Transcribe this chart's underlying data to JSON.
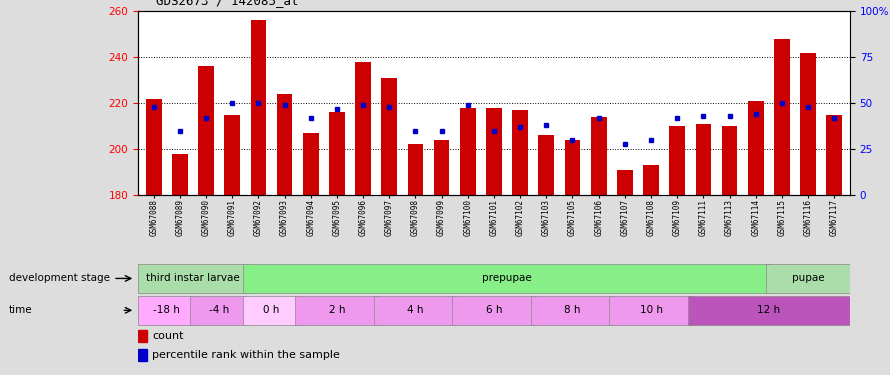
{
  "title": "GDS2673 / 142085_at",
  "samples": [
    "GSM67088",
    "GSM67089",
    "GSM67090",
    "GSM67091",
    "GSM67092",
    "GSM67093",
    "GSM67094",
    "GSM67095",
    "GSM67096",
    "GSM67097",
    "GSM67098",
    "GSM67099",
    "GSM67100",
    "GSM67101",
    "GSM67102",
    "GSM67103",
    "GSM67105",
    "GSM67106",
    "GSM67107",
    "GSM67108",
    "GSM67109",
    "GSM67111",
    "GSM67113",
    "GSM67114",
    "GSM67115",
    "GSM67116",
    "GSM67117"
  ],
  "counts": [
    222,
    198,
    236,
    215,
    256,
    224,
    207,
    216,
    238,
    231,
    202,
    204,
    218,
    218,
    217,
    206,
    204,
    214,
    191,
    193,
    210,
    211,
    210,
    221,
    248,
    242,
    215
  ],
  "percentiles": [
    48,
    35,
    42,
    50,
    50,
    49,
    42,
    47,
    49,
    48,
    35,
    35,
    49,
    35,
    37,
    38,
    30,
    42,
    28,
    30,
    42,
    43,
    43,
    44,
    50,
    48,
    42
  ],
  "ymin": 180,
  "ymax": 260,
  "yticks": [
    180,
    200,
    220,
    240,
    260
  ],
  "right_yticks": [
    0,
    25,
    50,
    75,
    100
  ],
  "bar_color": "#cc0000",
  "dot_color": "#0000cc",
  "plot_bg_color": "#ffffff",
  "fig_bg_color": "#dddddd",
  "stage_groups": [
    {
      "label": "third instar larvae",
      "start": 0,
      "end": 4,
      "color": "#aaddaa"
    },
    {
      "label": "prepupae",
      "start": 4,
      "end": 24,
      "color": "#88ee88"
    },
    {
      "label": "pupae",
      "start": 24,
      "end": 27,
      "color": "#aaddaa"
    }
  ],
  "time_groups": [
    {
      "label": "-18 h",
      "start": 0,
      "end": 2,
      "color": "#ffaaff"
    },
    {
      "label": "-4 h",
      "start": 2,
      "end": 4,
      "color": "#ee99ee"
    },
    {
      "label": "0 h",
      "start": 4,
      "end": 6,
      "color": "#ffccff"
    },
    {
      "label": "2 h",
      "start": 6,
      "end": 9,
      "color": "#ee99ee"
    },
    {
      "label": "4 h",
      "start": 9,
      "end": 12,
      "color": "#ee99ee"
    },
    {
      "label": "6 h",
      "start": 12,
      "end": 15,
      "color": "#ee99ee"
    },
    {
      "label": "8 h",
      "start": 15,
      "end": 18,
      "color": "#ee99ee"
    },
    {
      "label": "10 h",
      "start": 18,
      "end": 21,
      "color": "#ee99ee"
    },
    {
      "label": "12 h",
      "start": 21,
      "end": 27,
      "color": "#bb55bb"
    }
  ],
  "legend_count_color": "#cc0000",
  "legend_pct_color": "#0000cc",
  "bar_width": 0.6
}
